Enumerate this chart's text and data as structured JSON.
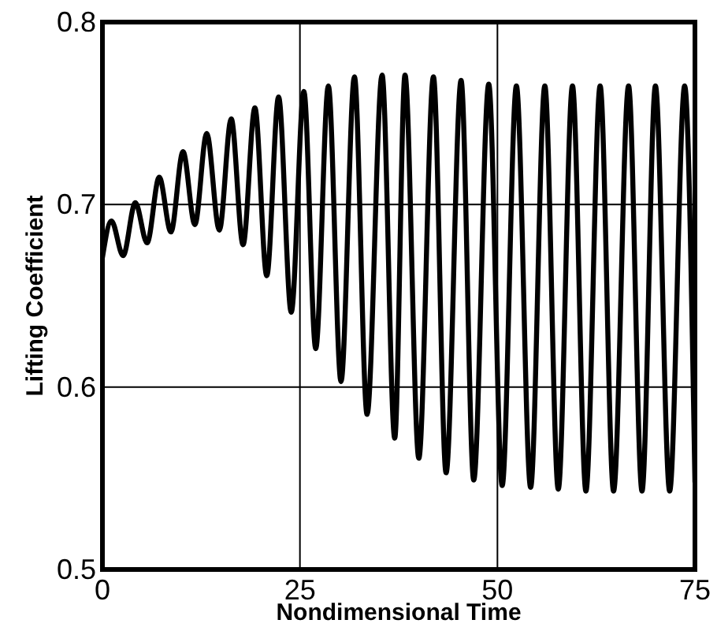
{
  "chart_data": {
    "type": "line",
    "xlabel": "Nondimensional Time",
    "ylabel": "Lifting Coefficient",
    "xlim": [
      0,
      75
    ],
    "xticks": [
      0,
      25,
      50,
      75
    ],
    "ylim": [
      0.5,
      0.8
    ],
    "yticks": [
      0.5,
      0.6,
      0.7,
      0.8
    ],
    "grid": true,
    "series": [
      {
        "color": "#000000",
        "x": [
          0,
          1.14,
          2.62,
          4.17,
          5.65,
          7.19,
          8.67,
          10.2,
          11.7,
          13.2,
          14.8,
          16.3,
          17.8,
          19.3,
          20.8,
          22.3,
          23.9,
          25.5,
          27.0,
          28.6,
          30.2,
          31.9,
          33.5,
          35.4,
          37.0,
          38.3,
          40.05,
          41.9,
          43.5,
          45.4,
          47.0,
          48.9,
          50.6,
          52.4,
          54.2,
          56.0,
          57.7,
          59.5,
          61.2,
          63.0,
          64.7,
          66.6,
          68.3,
          70.0,
          71.8,
          73.7,
          75
        ],
        "values": [
          0.671,
          0.691,
          0.672,
          0.701,
          0.679,
          0.715,
          0.685,
          0.729,
          0.689,
          0.739,
          0.686,
          0.747,
          0.678,
          0.753,
          0.661,
          0.759,
          0.641,
          0.762,
          0.621,
          0.765,
          0.603,
          0.77,
          0.585,
          0.771,
          0.572,
          0.771,
          0.561,
          0.77,
          0.553,
          0.768,
          0.549,
          0.766,
          0.546,
          0.765,
          0.545,
          0.765,
          0.544,
          0.765,
          0.543,
          0.765,
          0.543,
          0.765,
          0.543,
          0.765,
          0.543,
          0.765,
          0.548
        ]
      }
    ]
  }
}
